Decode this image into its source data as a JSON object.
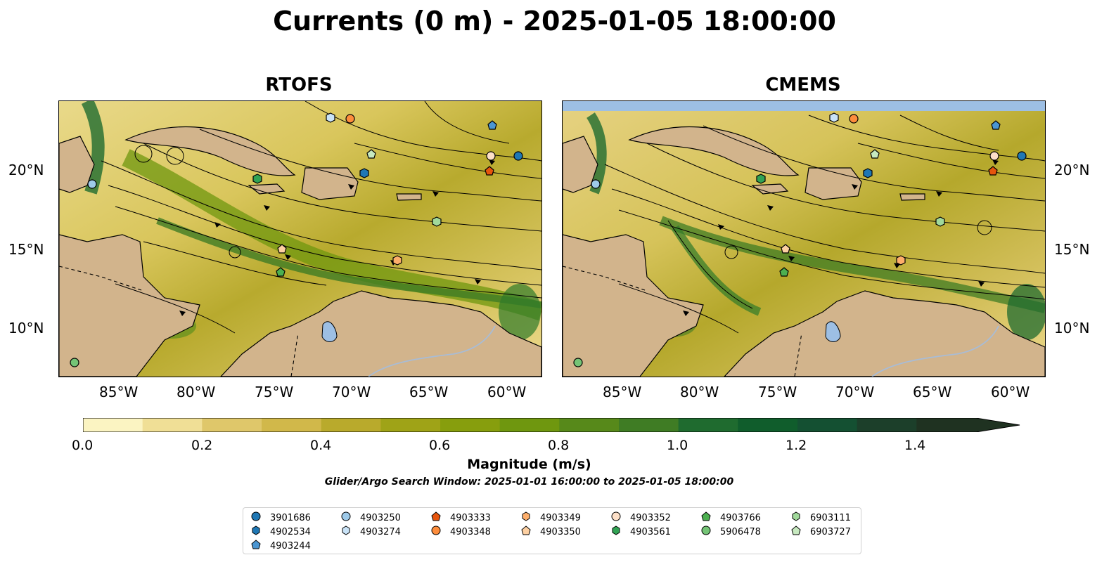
{
  "title": "Currents (0 m) - 2025-01-05 18:00:00",
  "panels": [
    {
      "title": "RTOFS"
    },
    {
      "title": "CMEMS"
    }
  ],
  "axes": {
    "x_ticks": [
      "85°W",
      "80°W",
      "75°W",
      "70°W",
      "65°W",
      "60°W"
    ],
    "y_ticks": [
      "20°N",
      "15°N",
      "10°N"
    ]
  },
  "colorbar": {
    "label": "Magnitude (m/s)",
    "ticks": [
      "0.0",
      "0.2",
      "0.4",
      "0.6",
      "0.8",
      "1.0",
      "1.2",
      "1.4"
    ],
    "levels": [
      0.0,
      0.1,
      0.2,
      0.3,
      0.4,
      0.5,
      0.6,
      0.7,
      0.8,
      0.9,
      1.0,
      1.1,
      1.2,
      1.3,
      1.4,
      1.5
    ],
    "colors": [
      "#fbf4c2",
      "#f0df96",
      "#dfc76a",
      "#d1b84a",
      "#b9aa2c",
      "#9fa317",
      "#879e0d",
      "#6f970f",
      "#57891a",
      "#3f7c24",
      "#1f6b2f",
      "#105d2c",
      "#145032",
      "#1c3f2a",
      "#1f3221"
    ],
    "extend": "max"
  },
  "search_window": "Glider/Argo Search Window: 2025-01-01 16:00:00 to 2025-01-05 18:00:00",
  "map_colors": {
    "land": "#d2b48c",
    "lakes": "#9dbfe4",
    "rivers": "#a8bcd6",
    "coast": "#000000"
  },
  "legend": [
    {
      "id": "3901686",
      "color": "#1f77b4",
      "shape": "circle"
    },
    {
      "id": "4902534",
      "color": "#1f77b4",
      "shape": "hexagon"
    },
    {
      "id": "4903244",
      "color": "#4b96d2",
      "shape": "pentagon"
    },
    {
      "id": "4903250",
      "color": "#9ecae9",
      "shape": "circle"
    },
    {
      "id": "4903274",
      "color": "#c9e3f7",
      "shape": "hexagon"
    },
    {
      "id": "4903333",
      "color": "#e6550d",
      "shape": "pentagon"
    },
    {
      "id": "4903348",
      "color": "#fd8d3c",
      "shape": "circle"
    },
    {
      "id": "4903349",
      "color": "#fdae6b",
      "shape": "hexagon"
    },
    {
      "id": "4903350",
      "color": "#fdd0a2",
      "shape": "pentagon"
    },
    {
      "id": "4903352",
      "color": "#fde0c8",
      "shape": "circle"
    },
    {
      "id": "4903561",
      "color": "#31a354",
      "shape": "hexagon"
    },
    {
      "id": "4903766",
      "color": "#4caf50",
      "shape": "pentagon"
    },
    {
      "id": "5906478",
      "color": "#74c476",
      "shape": "circle"
    },
    {
      "id": "6903111",
      "color": "#a1d99b",
      "shape": "hexagon"
    },
    {
      "id": "6903727",
      "color": "#c7e9c0",
      "shape": "pentagon"
    }
  ]
}
